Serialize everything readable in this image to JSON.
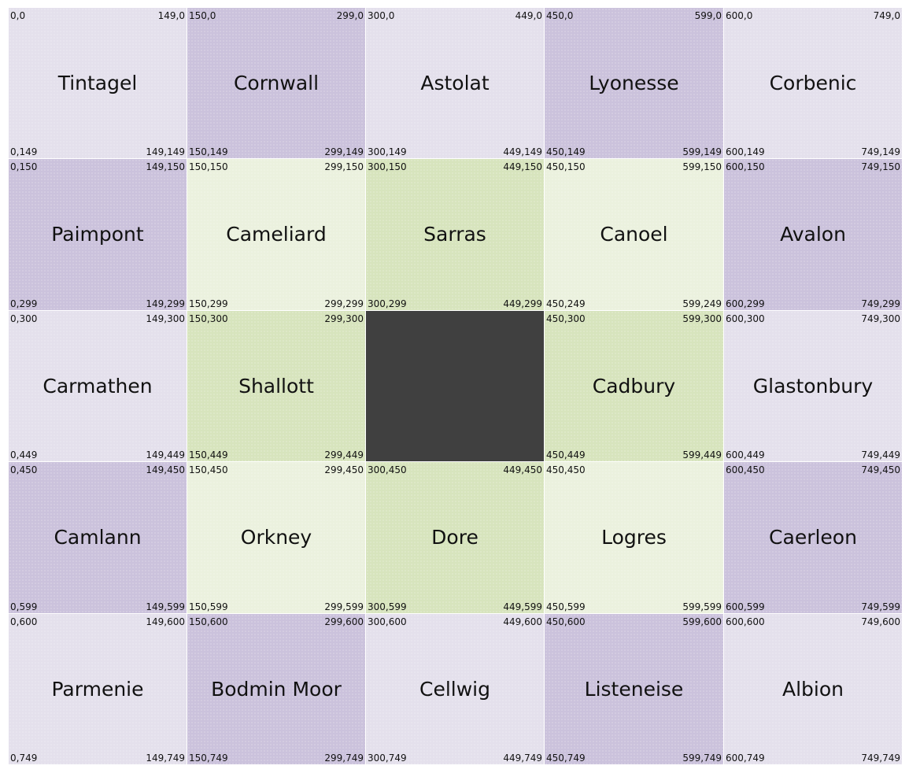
{
  "colors": {
    "light_violet": "#e4e0ec",
    "violet": "#cbc2dc",
    "pale_green": "#ebf1de",
    "green": "#d7e4bd",
    "dark": "#404040"
  },
  "cells": [
    {
      "name": "Tintagel",
      "tl": "0,0",
      "tr": "149,0",
      "bl": "0,149",
      "br": "149,149",
      "tone": "light-violet"
    },
    {
      "name": "Cornwall",
      "tl": "150,0",
      "tr": "299,0",
      "bl": "150,149",
      "br": "299,149",
      "tone": "violet"
    },
    {
      "name": "Astolat",
      "tl": "300,0",
      "tr": "449,0",
      "bl": "300,149",
      "br": "449,149",
      "tone": "light-violet"
    },
    {
      "name": "Lyonesse",
      "tl": "450,0",
      "tr": "599,0",
      "bl": "450,149",
      "br": "599,149",
      "tone": "violet"
    },
    {
      "name": "Corbenic",
      "tl": "600,0",
      "tr": "749,0",
      "bl": "600,149",
      "br": "749,149",
      "tone": "light-violet"
    },
    {
      "name": "Paimpont",
      "tl": "0,150",
      "tr": "149,150",
      "bl": "0,299",
      "br": "149,299",
      "tone": "violet"
    },
    {
      "name": "Cameliard",
      "tl": "150,150",
      "tr": "299,150",
      "bl": "150,299",
      "br": "299,299",
      "tone": "pale-green"
    },
    {
      "name": "Sarras",
      "tl": "300,150",
      "tr": "449,150",
      "bl": "300,299",
      "br": "449,299",
      "tone": "green"
    },
    {
      "name": "Canoel",
      "tl": "450,150",
      "tr": "599,150",
      "bl": "450,249",
      "br": "599,249",
      "tone": "pale-green"
    },
    {
      "name": "Avalon",
      "tl": "600,150",
      "tr": "749,150",
      "bl": "600,299",
      "br": "749,299",
      "tone": "violet"
    },
    {
      "name": "Carmathen",
      "tl": "0,300",
      "tr": "149,300",
      "bl": "0,449",
      "br": "149,449",
      "tone": "light-violet"
    },
    {
      "name": "Shallott",
      "tl": "150,300",
      "tr": "299,300",
      "bl": "150,449",
      "br": "299,449",
      "tone": "green"
    },
    {
      "name": "",
      "tl": "",
      "tr": "",
      "bl": "",
      "br": "",
      "tone": "dark"
    },
    {
      "name": "Cadbury",
      "tl": "450,300",
      "tr": "599,300",
      "bl": "450,449",
      "br": "599,449",
      "tone": "green"
    },
    {
      "name": "Glastonbury",
      "tl": "600,300",
      "tr": "749,300",
      "bl": "600,449",
      "br": "749,449",
      "tone": "light-violet"
    },
    {
      "name": "Camlann",
      "tl": "0,450",
      "tr": "149,450",
      "bl": "0,599",
      "br": "149,599",
      "tone": "violet"
    },
    {
      "name": "Orkney",
      "tl": "150,450",
      "tr": "299,450",
      "bl": "150,599",
      "br": "299,599",
      "tone": "pale-green"
    },
    {
      "name": "Dore",
      "tl": "300,450",
      "tr": "449,450",
      "bl": "300,599",
      "br": "449,599",
      "tone": "green"
    },
    {
      "name": "Logres",
      "tl": "450,450",
      "tr": "",
      "bl": "450,599",
      "br": "599,599",
      "tone": "pale-green"
    },
    {
      "name": "Caerleon",
      "tl": "600,450",
      "tr": "749,450",
      "bl": "600,599",
      "br": "749,599",
      "tone": "violet"
    },
    {
      "name": "Parmenie",
      "tl": "0,600",
      "tr": "149,600",
      "bl": "0,749",
      "br": "149,749",
      "tone": "light-violet"
    },
    {
      "name": "Bodmin Moor",
      "tl": "150,600",
      "tr": "299,600",
      "bl": "150,749",
      "br": "299,749",
      "tone": "violet"
    },
    {
      "name": "Cellwig",
      "tl": "300,600",
      "tr": "449,600",
      "bl": "300,749",
      "br": "449,749",
      "tone": "light-violet"
    },
    {
      "name": "Listeneise",
      "tl": "450,600",
      "tr": "599,600",
      "bl": "450,749",
      "br": "599,749",
      "tone": "violet"
    },
    {
      "name": "Albion",
      "tl": "600,600",
      "tr": "749,600",
      "bl": "600,749",
      "br": "749,749",
      "tone": "light-violet"
    }
  ]
}
